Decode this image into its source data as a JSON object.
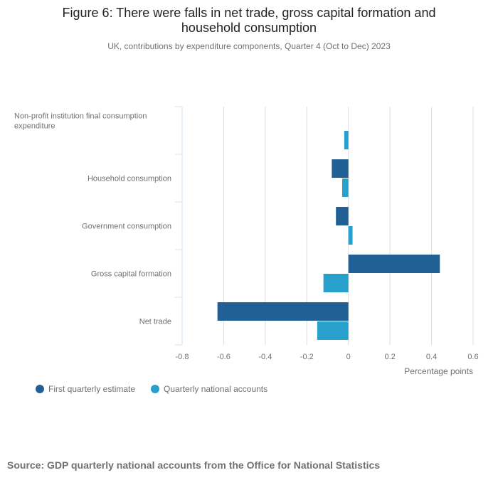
{
  "chart_data": {
    "type": "bar",
    "orientation": "horizontal",
    "title": "Figure 6: There were falls in net trade, gross capital formation and household consumption",
    "subtitle": "UK, contributions by expenditure components, Quarter 4 (Oct to Dec) 2023",
    "categories": [
      "Non-profit institution final consumption expenditure",
      "Household consumption",
      "Government consumption",
      "Gross capital formation",
      "Net trade"
    ],
    "series": [
      {
        "name": "First quarterly estimate",
        "color": "#206095",
        "values": [
          null,
          -0.08,
          -0.06,
          0.44,
          -0.63
        ]
      },
      {
        "name": "Quarterly national accounts",
        "color": "#27a0cc",
        "values": [
          -0.02,
          -0.03,
          0.02,
          -0.12,
          -0.15
        ]
      }
    ],
    "xlim": [
      -0.8,
      0.6
    ],
    "xticks": [
      -0.8,
      -0.6,
      -0.4,
      -0.2,
      0,
      0.2,
      0.4,
      0.6
    ],
    "xlabel": "Percentage points",
    "ylabel": "",
    "grid": true,
    "legend_position": "bottom-left"
  },
  "source": "Source: GDP quarterly national accounts from the Office for National Statistics"
}
